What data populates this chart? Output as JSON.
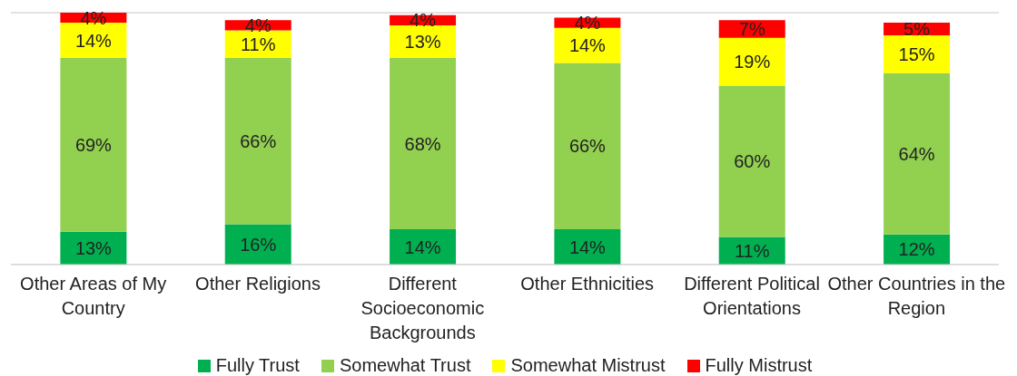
{
  "chart_data": {
    "type": "bar",
    "stacked": true,
    "categories": [
      "Other Areas of My Country",
      "Other Religions",
      "Different Socioeconomic Backgrounds",
      "Other Ethnicities",
      "Different Political Orientations",
      "Other Countries in the Region"
    ],
    "series": [
      {
        "name": "Fully Trust",
        "color": "#00b050",
        "values": [
          13,
          16,
          14,
          14,
          11,
          12
        ],
        "value_labels": [
          "13%",
          "16%",
          "14%",
          "14%",
          "11%",
          "12%"
        ]
      },
      {
        "name": "Somewhat Trust",
        "color": "#92d050",
        "values": [
          69,
          66,
          68,
          66,
          60,
          64
        ],
        "value_labels": [
          "69%",
          "66%",
          "68%",
          "66%",
          "60%",
          "64%"
        ]
      },
      {
        "name": "Somewhat Mistrust",
        "color": "#ffff00",
        "values": [
          14,
          11,
          13,
          14,
          19,
          15
        ],
        "value_labels": [
          "14%",
          "11%",
          "13%",
          "14%",
          "19%",
          "15%"
        ]
      },
      {
        "name": "Fully Mistrust",
        "color": "#ff0000",
        "values": [
          4,
          4,
          4,
          4,
          7,
          5
        ],
        "value_labels": [
          "4%",
          "4%",
          "4%",
          "4%",
          "7%",
          "5%"
        ]
      }
    ],
    "ylim": [
      0,
      100
    ],
    "tick_labels": "x",
    "grid": "y",
    "legend": "bottom"
  }
}
